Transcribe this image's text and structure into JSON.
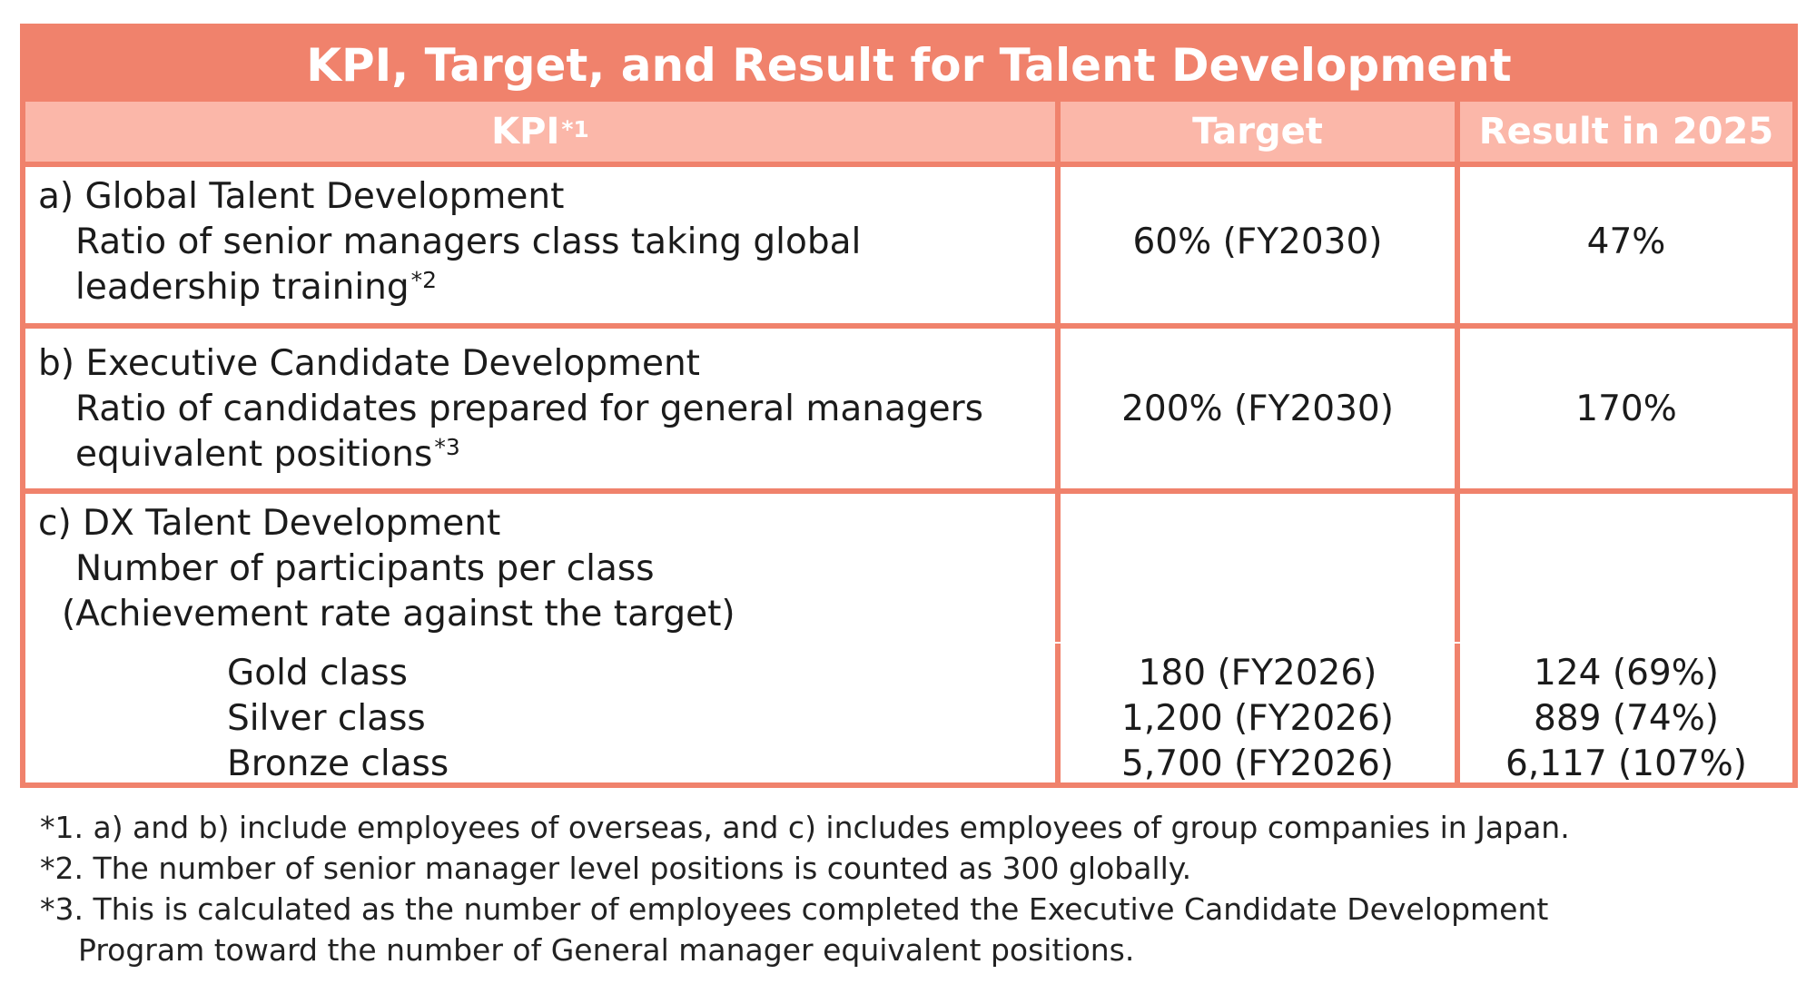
{
  "title": "KPI, Target, and Result for Talent Development",
  "headers": {
    "kpi": "KPI",
    "kpi_note": "*1",
    "target": "Target",
    "result": "Result in 2025"
  },
  "rows": [
    {
      "heading": "a)  Global Talent Development",
      "line1": "Ratio of senior managers class taking global",
      "line2": "leadership training",
      "note": "*2",
      "target": "60% (FY2030)",
      "result": "47%"
    },
    {
      "heading": "b)  Executive Candidate Development",
      "line1": "Ratio of candidates prepared for general managers",
      "line2": "equivalent positions",
      "note": "*3",
      "target": "200% (FY2030)",
      "result": "170%"
    },
    {
      "heading": "c)  DX Talent Development",
      "line1": "Number of participants per class",
      "line2": "(Achievement rate against the target)",
      "classes": [
        {
          "name": "Gold class",
          "target": "180 (FY2026)",
          "result": "124 (69%)"
        },
        {
          "name": "Silver class",
          "target": "1,200 (FY2026)",
          "result": "889 (74%)"
        },
        {
          "name": "Bronze class",
          "target": "5,700 (FY2026)",
          "result": "6,117 (107%)"
        }
      ]
    }
  ],
  "footnotes": [
    "*1. a) and b) include employees of overseas, and c) includes employees of group companies in Japan.",
    "*2. The number of senior manager level positions is counted as 300 globally.",
    "*3. This is calculated as the number of employees completed the Executive Candidate Development",
    "Program toward the number of General manager equivalent positions."
  ],
  "colors": {
    "accent": "#f0826c",
    "header_band": "#fbb7a9"
  }
}
